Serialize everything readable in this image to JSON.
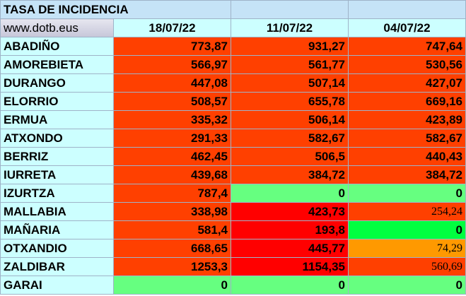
{
  "title": "TASA DE INCIDENCIA",
  "site": "www.dotb.eus",
  "dates": [
    "18/07/22",
    "11/07/22",
    "04/07/22"
  ],
  "colors": {
    "orange_red": "#ff4000",
    "red": "#ff0000",
    "green": "#66ff80",
    "bright_green": "#00ff40",
    "orange": "#ff9900",
    "cyan": "#ccffff"
  },
  "rows": [
    {
      "name": "ABADIÑO",
      "values": [
        "773,87",
        "931,27",
        "747,64"
      ]
    },
    {
      "name": "AMOREBIETA",
      "values": [
        "566,97",
        "561,77",
        "530,56"
      ]
    },
    {
      "name": "DURANGO",
      "values": [
        "447,08",
        "507,14",
        "427,07"
      ]
    },
    {
      "name": "ELORRIO",
      "values": [
        "508,57",
        "655,78",
        "669,16"
      ]
    },
    {
      "name": "ERMUA",
      "values": [
        "335,32",
        "506,14",
        "423,89"
      ]
    },
    {
      "name": "ATXONDO",
      "values": [
        "291,33",
        "582,67",
        "582,67"
      ]
    },
    {
      "name": "BERRIZ",
      "values": [
        "462,45",
        "506,5",
        "440,43"
      ]
    },
    {
      "name": "IURRETA",
      "values": [
        "439,68",
        "384,72",
        "384,72"
      ]
    },
    {
      "name": "IZURTZA",
      "values": [
        "787,4",
        "0",
        "0"
      ]
    },
    {
      "name": "MALLABIA",
      "values": [
        "338,98",
        "423,73",
        "254,24"
      ]
    },
    {
      "name": "MAÑARIA",
      "values": [
        "581,4",
        "193,8",
        "0"
      ]
    },
    {
      "name": "OTXANDIO",
      "values": [
        "668,65",
        "445,77",
        "74,29"
      ]
    },
    {
      "name": "ZALDIBAR",
      "values": [
        "1253,3",
        "1154,35",
        "560,69"
      ]
    },
    {
      "name": "GARAI",
      "values": [
        "0",
        "0",
        "0"
      ]
    }
  ]
}
